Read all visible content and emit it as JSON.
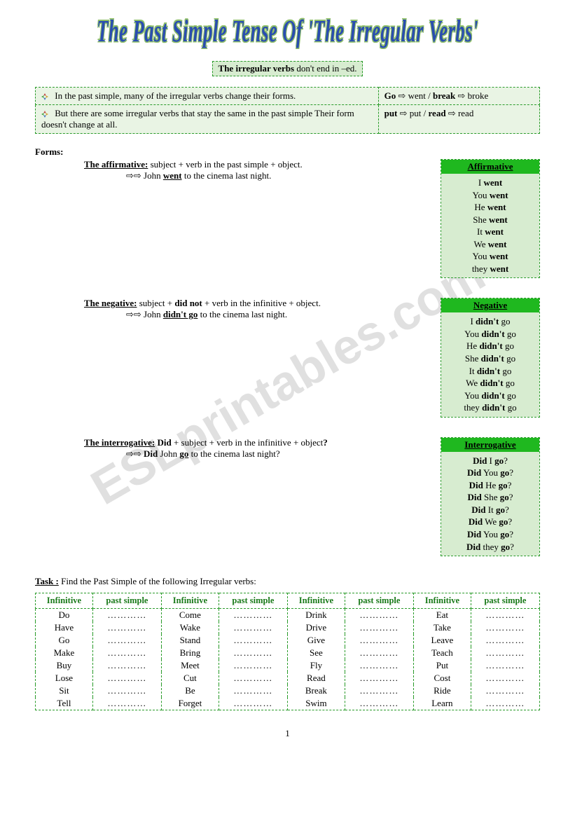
{
  "title": "The Past Simple Tense Of 'The Irregular Verbs'",
  "watermark": "ESLprintables.com",
  "intro": {
    "bold": "The irregular verbs",
    "rest": " don't end in –ed."
  },
  "rules": [
    {
      "text": "In the past simple, many of the irregular verbs change their forms.",
      "ex_html": "<b>Go</b> ⇨ went   /   <b>break</b> ⇨ broke"
    },
    {
      "text": "But there are some irregular verbs that stay the same in the past simple Their form doesn't change at all.",
      "ex_html": "<b>put</b>  ⇨ put  / <b>read</b>  ⇨  read"
    }
  ],
  "forms_label": "Forms:",
  "sections": [
    {
      "header": "Affirmative",
      "desc_html": "<b><span class='u'>The affirmative:</span></b> subject + verb in the past simple + object.",
      "ex_html": "⇨⇨  John <b><span class='u'>went</span></b> to the cinema last night.",
      "conj": [
        "I <b>went</b>",
        "You <b>went</b>",
        "He <b>went</b>",
        "She <b>went</b>",
        "It <b>went</b>",
        "We <b>went</b>",
        "You <b>went</b>",
        "they <b>went</b>"
      ]
    },
    {
      "header": "Negative",
      "desc_html": "<b><span class='u'>The negative:</span></b> subject + <b>did not</b> + verb in the infinitive + object.",
      "ex_html": "⇨⇨ John <b><span class='u'>didn't go</span></b> to the cinema last night.",
      "conj": [
        "I <b>didn't</b> go",
        "You  <b>didn't</b> go",
        "He  <b>didn't</b> go",
        "She  <b>didn't</b> go",
        "It  <b>didn't</b> go",
        "We  <b>didn't</b> go",
        "You <b>didn't</b> go",
        "they <b>didn't</b> go"
      ]
    },
    {
      "header": "Interrogative",
      "desc_html": "<b><span class='u'>The interrogative:</span> Did</b> + subject + verb in the infinitive + object<b>?</b>",
      "ex_html": "⇨⇨ <b>Did</b> John <b><span class='u'>go</span></b> to the cinema last night?",
      "conj": [
        "<b>Did</b> I <b>go</b>?",
        "<b>Did</b> You <b>go</b>?",
        "<b>Did</b> He <b>go</b>?",
        "<b>Did</b> She <b>go</b>?",
        "<b>Did</b> It <b>go</b>?",
        "<b>Did</b> We <b>go</b>?",
        "<b>Did</b> You <b>go</b>?",
        "<b>Did</b> they <b>go</b>?"
      ]
    }
  ],
  "task_html": "<b><span class='u'>Task :</span></b> Find the Past Simple of the following Irregular verbs:",
  "verb_table": {
    "headers": [
      "Infinitive",
      "past simple",
      "Infinitive",
      "past simple",
      "Infinitive",
      "past simple",
      "Infinitive",
      "past simple"
    ],
    "rows": [
      [
        "Do",
        "…………",
        "Come",
        "…………",
        "Drink",
        "…………",
        "Eat",
        "…………"
      ],
      [
        "Have",
        "…………",
        "Wake",
        "…………",
        "Drive",
        "…………",
        "Take",
        "…………"
      ],
      [
        "Go",
        "…………",
        "Stand",
        "…………",
        "Give",
        "…………",
        "Leave",
        "…………"
      ],
      [
        "Make",
        "…………",
        "Bring",
        "…………",
        "See",
        "…………",
        "Teach",
        "…………"
      ],
      [
        "Buy",
        "…………",
        "Meet",
        "…………",
        "Fly",
        "…………",
        "Put",
        "…………"
      ],
      [
        "Lose",
        "…………",
        "Cut",
        "…………",
        "Read",
        "…………",
        "Cost",
        "…………"
      ],
      [
        "Sit",
        "…………",
        "Be",
        "…………",
        "Break",
        "…………",
        "Ride",
        "…………"
      ],
      [
        "Tell",
        "…………",
        "Forget",
        "…………",
        "Swim",
        "…………",
        "Learn",
        "…………"
      ]
    ]
  },
  "page_number": "1",
  "colors": {
    "title_fill": "#2a4db0",
    "title_outline": "#8fbf6a",
    "box_bg": "#d7ecd0",
    "box_bg2": "#e9f4e4",
    "border": "#2a9b2a",
    "header_green": "#1fb81f",
    "th_text": "#1a7a1a"
  }
}
